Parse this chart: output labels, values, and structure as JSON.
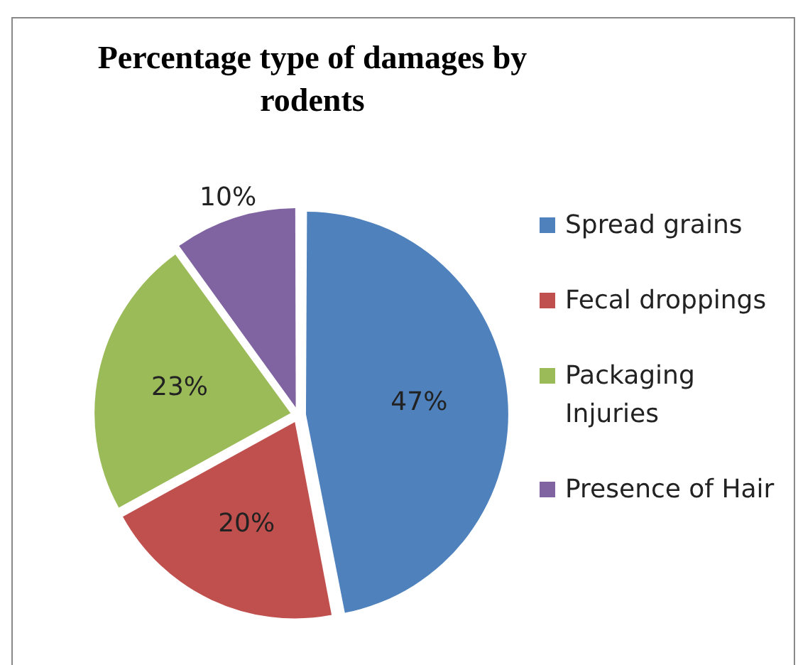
{
  "chart_data": {
    "type": "pie",
    "title": "Percentage type of damages by rodents",
    "categories": [
      "Spread grains",
      "Fecal droppings",
      "Packaging Injuries",
      "Presence of Hair"
    ],
    "values": [
      47,
      20,
      23,
      10
    ],
    "colors": [
      "#4f81bd",
      "#c0504d",
      "#9bbb59",
      "#8064a2"
    ],
    "value_labels": [
      "47%",
      "20%",
      "23%",
      "10%"
    ],
    "legend": "right"
  }
}
